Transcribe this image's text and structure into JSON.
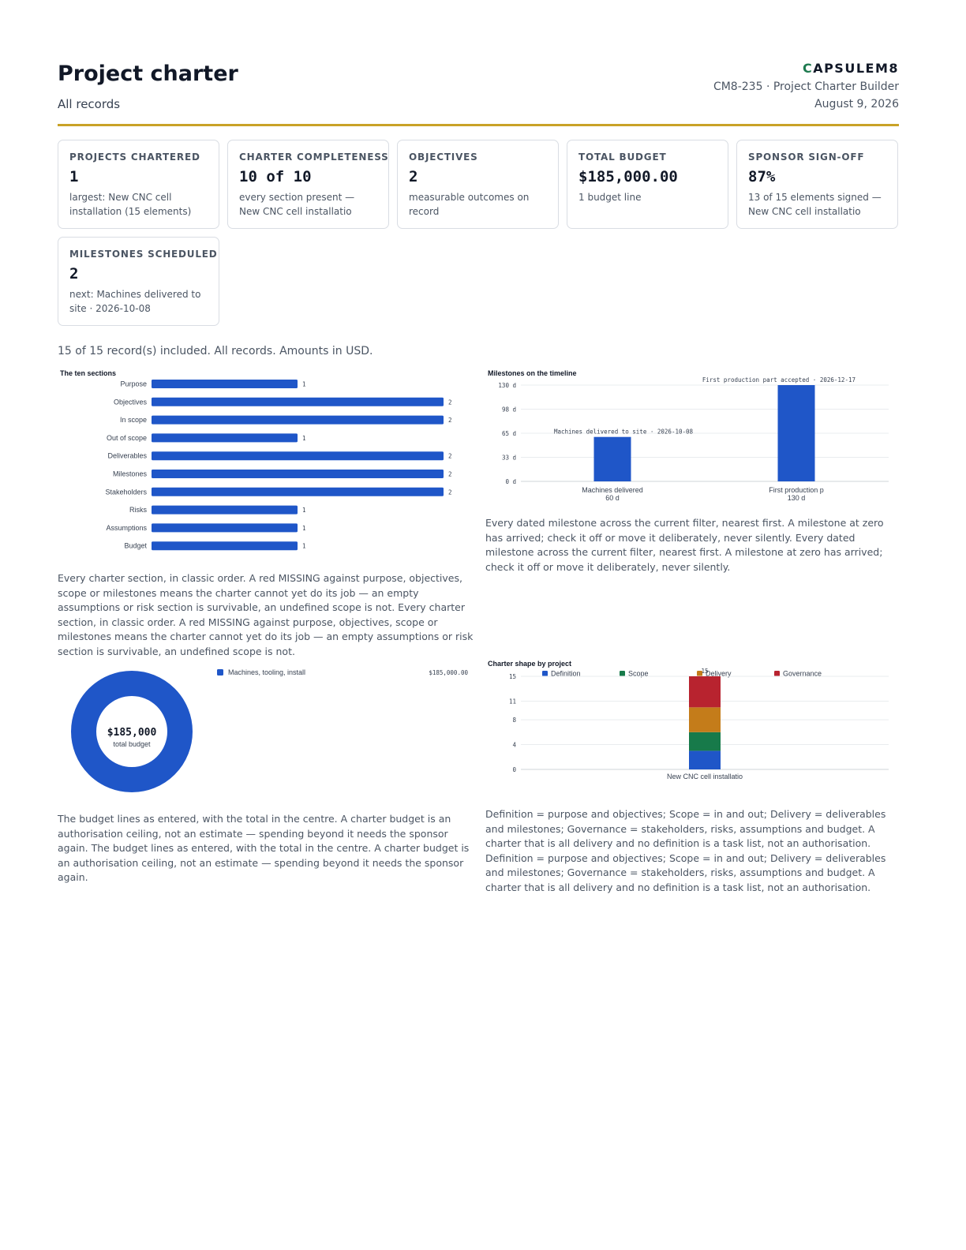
{
  "header": {
    "title": "Project charter",
    "subtitle": "All records",
    "brand": "APSULEM8",
    "brand_mark": "C",
    "code": "CM8-235 · Project Charter Builder",
    "date": "August 9, 2026"
  },
  "kpis": [
    {
      "label": "PROJECTS CHARTERED",
      "value": "1",
      "note": "largest: New CNC cell installation (15 elements)"
    },
    {
      "label": "CHARTER COMPLETENESS",
      "value": "10 of 10",
      "note": "every section present — New CNC cell installatio"
    },
    {
      "label": "OBJECTIVES",
      "value": "2",
      "note": "measurable outcomes on record"
    },
    {
      "label": "TOTAL BUDGET",
      "value": "$185,000.00",
      "note": "1 budget line"
    },
    {
      "label": "SPONSOR SIGN-OFF",
      "value": "87%",
      "note": "13 of 15 elements signed — New CNC cell installatio"
    },
    {
      "label": "MILESTONES SCHEDULED",
      "value": "2",
      "note": "next: Machines delivered to site · 2026-10-08"
    }
  ],
  "summary": "15 of 15 record(s) included. All records. Amounts in USD.",
  "captions": {
    "sections": "Every charter section, in classic order. A red MISSING against purpose, objectives, scope or milestones means the charter cannot yet do its job — an empty assumptions or risk section is survivable, an undefined scope is not. Every charter section, in classic order. A red MISSING against purpose, objectives, scope or milestones means the charter cannot yet do its job — an empty assumptions or risk section is survivable, an undefined scope is not.",
    "milestones": "Every dated milestone across the current filter, nearest first. A milestone at zero has arrived; check it off or move it deliberately, never silently. Every dated milestone across the current filter, nearest first. A milestone at zero has arrived; check it off or move it deliberately, never silently.",
    "budget": "The budget lines as entered, with the total in the centre. A charter budget is an authorisation ceiling, not an estimate — spending beyond it needs the sponsor again. The budget lines as entered, with the total in the centre. A charter budget is an authorisation ceiling, not an estimate — spending beyond it needs the sponsor again.",
    "shape": "Definition = purpose and objectives; Scope = in and out; Delivery = deliverables and milestones; Governance = stakeholders, risks, assumptions and budget. A charter that is all delivery and no definition is a task list, not an authorisation. Definition = purpose and objectives; Scope = in and out; Delivery = deliverables and milestones; Governance = stakeholders, risks, assumptions and budget. A charter that is all delivery and no definition is a task list, not an authorisation."
  },
  "colors": {
    "blue": "#1f56c8",
    "green": "#177a4a",
    "orange": "#c47c1a",
    "red": "#b8232f",
    "accent": "#c9a227"
  },
  "chart_data": [
    {
      "type": "bar",
      "orientation": "horizontal",
      "title": "The ten sections",
      "categories": [
        "Purpose",
        "Objectives",
        "In scope",
        "Out of scope",
        "Deliverables",
        "Milestones",
        "Stakeholders",
        "Risks",
        "Assumptions",
        "Budget"
      ],
      "values": [
        1,
        2,
        2,
        1,
        2,
        2,
        2,
        1,
        1,
        1
      ],
      "xlim": [
        0,
        2
      ]
    },
    {
      "type": "bar",
      "title": "Milestones on the timeline",
      "categories": [
        "Machines delivered",
        "First production p"
      ],
      "values": [
        60,
        130
      ],
      "value_labels": [
        "60 d",
        "130 d"
      ],
      "annotations": [
        "Machines delivered to site · 2026-10-08",
        "First production part accepted · 2026-12-17"
      ],
      "yticks": [
        "0 d",
        "33 d",
        "65 d",
        "98 d",
        "130 d"
      ],
      "ylim": [
        0,
        130
      ],
      "grid": true
    },
    {
      "type": "pie",
      "donut": true,
      "labels": [
        "Machines, tooling, install"
      ],
      "values": [
        185000
      ],
      "value_labels": [
        "$185,000.00"
      ],
      "center_value": "$185,000",
      "center_label": "total budget",
      "legend": "right"
    },
    {
      "type": "bar",
      "stacked": true,
      "title": "Charter shape by project",
      "categories": [
        "New CNC cell installatio"
      ],
      "series": [
        {
          "name": "Definition",
          "values": [
            3
          ]
        },
        {
          "name": "Scope",
          "values": [
            3
          ]
        },
        {
          "name": "Delivery",
          "values": [
            4
          ]
        },
        {
          "name": "Governance",
          "values": [
            5
          ]
        }
      ],
      "total_labels": [
        "15"
      ],
      "yticks": [
        "0",
        "4",
        "8",
        "11",
        "15"
      ],
      "ylim": [
        0,
        15
      ],
      "legend": "top-left",
      "grid": true
    }
  ]
}
